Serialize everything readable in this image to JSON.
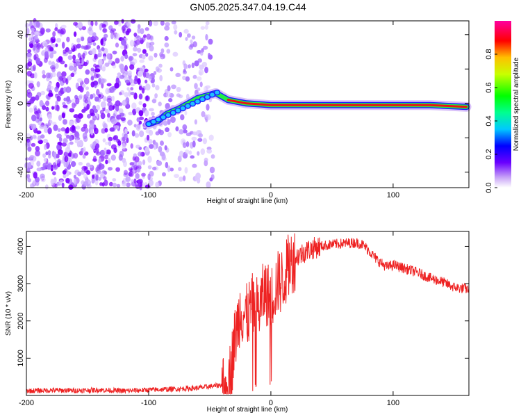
{
  "title": "GN05.2025.347.04.19.C44",
  "chart_data": [
    {
      "type": "heatmap",
      "xlabel": "Height of straight line (km)",
      "ylabel": "Frequency (Hz)",
      "xlim": [
        -200,
        162
      ],
      "ylim": [
        -49,
        48
      ],
      "xticks": [
        -200,
        -100,
        0,
        100
      ],
      "yticks": [
        -40,
        -20,
        0,
        20,
        40
      ],
      "colorbar": {
        "label": "Normalized spectral amplitude",
        "range": [
          0.0,
          1.0
        ],
        "ticks": [
          0.0,
          0.2,
          0.4,
          0.6,
          0.8
        ],
        "tick_labels": [
          "0.0",
          "0.2",
          "0.4",
          "0.6",
          "0.8"
        ],
        "colormap": "rainbow"
      },
      "features": {
        "noise_region_x": [
          -200,
          -47
        ],
        "chirp_path": [
          [
            -100,
            -12
          ],
          [
            -92,
            -10
          ],
          [
            -85,
            -6
          ],
          [
            -75,
            -3
          ],
          [
            -60,
            3
          ],
          [
            -45,
            6
          ],
          [
            -35,
            2
          ],
          [
            -20,
            0
          ],
          [
            0,
            -1
          ],
          [
            20,
            -1
          ],
          [
            50,
            -1
          ],
          [
            80,
            -1
          ],
          [
            100,
            -1
          ],
          [
            130,
            -1
          ],
          [
            160,
            -2
          ]
        ]
      }
    },
    {
      "type": "line",
      "xlabel": "Height of straight line (km)",
      "ylabel": "SNR (10 * v/v)",
      "xlim": [
        -200,
        162
      ],
      "ylim": [
        0,
        4400
      ],
      "xticks": [
        -200,
        -100,
        0,
        100
      ],
      "yticks": [
        1000,
        2000,
        3000,
        4000
      ],
      "series": [
        {
          "color": "#ee2222",
          "x": [
            -200,
            -180,
            -160,
            -140,
            -120,
            -100,
            -80,
            -60,
            -45,
            -38,
            -33,
            -30,
            -25,
            -20,
            -15,
            -10,
            -5,
            0,
            5,
            10,
            15,
            20,
            25,
            30,
            40,
            50,
            60,
            70,
            75,
            80,
            85,
            90,
            95,
            100,
            110,
            120,
            130,
            140,
            150,
            162
          ],
          "y": [
            120,
            140,
            130,
            150,
            120,
            150,
            170,
            200,
            260,
            300,
            600,
            1400,
            2300,
            2100,
            2400,
            2300,
            2800,
            2600,
            3000,
            3100,
            3500,
            3700,
            3800,
            3900,
            4000,
            4050,
            4080,
            4100,
            4050,
            3900,
            3700,
            3550,
            3450,
            3500,
            3400,
            3300,
            3150,
            3050,
            2900,
            2850
          ]
        }
      ]
    }
  ]
}
